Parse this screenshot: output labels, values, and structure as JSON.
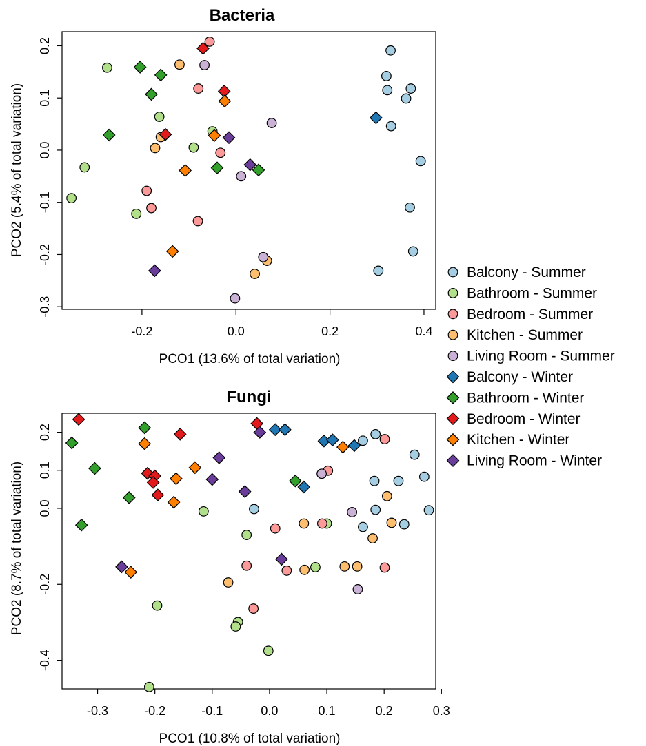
{
  "legend": [
    {
      "label": "Balcony - Summer",
      "shape": "circle",
      "color": "#A6CEE3"
    },
    {
      "label": "Bathroom - Summer",
      "shape": "circle",
      "color": "#B2DF8A"
    },
    {
      "label": "Bedroom - Summer",
      "shape": "circle",
      "color": "#FB9A99"
    },
    {
      "label": "Kitchen - Summer",
      "shape": "circle",
      "color": "#FDBF6F"
    },
    {
      "label": "Living Room - Summer",
      "shape": "circle",
      "color": "#CAB2D6"
    },
    {
      "label": "Balcony - Winter",
      "shape": "diamond",
      "color": "#1F78B4"
    },
    {
      "label": "Bathroom - Winter",
      "shape": "diamond",
      "color": "#33A02C"
    },
    {
      "label": "Bedroom - Winter",
      "shape": "diamond",
      "color": "#E31A1C"
    },
    {
      "label": "Kitchen - Winter",
      "shape": "diamond",
      "color": "#FF7F00"
    },
    {
      "label": "Living Room - Winter",
      "shape": "diamond",
      "color": "#6A3D9A"
    }
  ],
  "chart_data": [
    {
      "type": "scatter",
      "title": "Bacteria",
      "xlabel": "PCO1 (13.6% of total variation)",
      "ylabel": "PCO2 (5.4% of total variation)",
      "xlim": [
        -0.37,
        0.425
      ],
      "ylim": [
        -0.305,
        0.227
      ],
      "xticks": [
        -0.2,
        0.0,
        0.2,
        0.4
      ],
      "xtick_labels": [
        "-0.2",
        "0.0",
        "0.2",
        "0.4"
      ],
      "yticks": [
        -0.3,
        -0.2,
        -0.1,
        0.0,
        0.1,
        0.2
      ],
      "ytick_labels": [
        "-0.3",
        "-0.2",
        "-0.1",
        "0.0",
        "0.1",
        "0.2"
      ],
      "grid": false,
      "series": [
        {
          "name": "Balcony - Summer",
          "points": [
            [
              0.329,
              0.191
            ],
            [
              0.32,
              0.142
            ],
            [
              0.322,
              0.115
            ],
            [
              0.372,
              0.118
            ],
            [
              0.362,
              0.099
            ],
            [
              0.33,
              0.046
            ],
            [
              0.393,
              -0.021
            ],
            [
              0.37,
              -0.11
            ],
            [
              0.377,
              -0.194
            ],
            [
              0.303,
              -0.231
            ]
          ]
        },
        {
          "name": "Bathroom - Summer",
          "points": [
            [
              -0.274,
              0.158
            ],
            [
              -0.163,
              0.064
            ],
            [
              -0.05,
              0.036
            ],
            [
              -0.09,
              0.005
            ],
            [
              -0.322,
              -0.033
            ],
            [
              -0.35,
              -0.092
            ],
            [
              -0.212,
              -0.122
            ]
          ]
        },
        {
          "name": "Bedroom - Summer",
          "points": [
            [
              -0.056,
              0.208
            ],
            [
              -0.08,
              0.118
            ],
            [
              -0.033,
              -0.005
            ],
            [
              -0.19,
              -0.078
            ],
            [
              -0.18,
              -0.111
            ],
            [
              -0.081,
              -0.136
            ]
          ]
        },
        {
          "name": "Kitchen - Summer",
          "points": [
            [
              -0.12,
              0.164
            ],
            [
              -0.16,
              0.025
            ],
            [
              -0.172,
              0.004
            ],
            [
              0.066,
              -0.212
            ],
            [
              0.04,
              -0.237
            ]
          ]
        },
        {
          "name": "Living Room - Summer",
          "points": [
            [
              -0.067,
              0.163
            ],
            [
              0.076,
              0.052
            ],
            [
              0.011,
              -0.05
            ],
            [
              0.058,
              -0.205
            ],
            [
              -0.002,
              -0.284
            ]
          ]
        },
        {
          "name": "Balcony - Winter",
          "points": [
            [
              0.298,
              0.062
            ]
          ]
        },
        {
          "name": "Bathroom - Winter",
          "points": [
            [
              -0.204,
              0.159
            ],
            [
              -0.16,
              0.144
            ],
            [
              -0.18,
              0.107
            ],
            [
              -0.27,
              0.029
            ],
            [
              -0.04,
              -0.034
            ],
            [
              0.048,
              -0.038
            ]
          ]
        },
        {
          "name": "Bedroom - Winter",
          "points": [
            [
              -0.07,
              0.195
            ],
            [
              -0.025,
              0.113
            ],
            [
              -0.15,
              0.03
            ]
          ]
        },
        {
          "name": "Kitchen - Winter",
          "points": [
            [
              -0.024,
              0.094
            ],
            [
              -0.046,
              0.028
            ],
            [
              -0.108,
              -0.039
            ],
            [
              -0.135,
              -0.194
            ]
          ]
        },
        {
          "name": "Living Room - Winter",
          "points": [
            [
              -0.015,
              0.024
            ],
            [
              0.03,
              -0.028
            ],
            [
              -0.173,
              -0.231
            ]
          ]
        }
      ]
    },
    {
      "type": "scatter",
      "title": "Fungi",
      "xlabel": "PCO1 (10.8% of total variation)",
      "ylabel": "PCO2 (8.7% of total variation)",
      "xlim": [
        -0.362,
        0.29
      ],
      "ylim": [
        -0.475,
        0.25
      ],
      "xticks": [
        -0.3,
        -0.2,
        -0.1,
        0.0,
        0.1,
        0.2,
        0.3
      ],
      "xtick_labels": [
        "-0.3",
        "-0.2",
        "-0.1",
        "0.0",
        "0.1",
        "0.2",
        "0.3"
      ],
      "yticks": [
        -0.4,
        -0.2,
        0.0,
        0.1,
        0.2
      ],
      "ytick_labels": [
        "-0.4",
        "-0.2",
        "0.0",
        "0.1",
        "0.2"
      ],
      "grid": false,
      "series": [
        {
          "name": "Balcony - Summer",
          "points": [
            [
              0.185,
              0.195
            ],
            [
              0.163,
              0.178
            ],
            [
              0.253,
              0.141
            ],
            [
              0.27,
              0.083
            ],
            [
              0.183,
              0.072
            ],
            [
              0.225,
              0.072
            ],
            [
              0.278,
              -0.005
            ],
            [
              0.185,
              -0.004
            ],
            [
              -0.027,
              -0.002
            ],
            [
              0.163,
              -0.049
            ],
            [
              0.235,
              -0.042
            ]
          ]
        },
        {
          "name": "Bathroom - Summer",
          "points": [
            [
              -0.115,
              -0.008
            ],
            [
              -0.04,
              -0.07
            ],
            [
              0.1,
              -0.04
            ],
            [
              0.08,
              -0.155
            ],
            [
              -0.196,
              -0.256
            ],
            [
              -0.055,
              -0.299
            ],
            [
              -0.059,
              -0.311
            ],
            [
              -0.002,
              -0.375
            ],
            [
              -0.21,
              -0.47
            ]
          ]
        },
        {
          "name": "Bedroom - Summer",
          "points": [
            [
              0.201,
              0.182
            ],
            [
              0.102,
              0.099
            ],
            [
              0.092,
              -0.04
            ],
            [
              0.01,
              -0.053
            ],
            [
              -0.04,
              -0.151
            ],
            [
              0.03,
              -0.164
            ],
            [
              0.201,
              -0.156
            ],
            [
              -0.028,
              -0.264
            ]
          ]
        },
        {
          "name": "Kitchen - Summer",
          "points": [
            [
              0.205,
              0.032
            ],
            [
              0.06,
              -0.04
            ],
            [
              0.213,
              -0.038
            ],
            [
              0.18,
              -0.079
            ],
            [
              0.131,
              -0.153
            ],
            [
              0.153,
              -0.153
            ],
            [
              0.061,
              -0.162
            ],
            [
              -0.072,
              -0.195
            ]
          ]
        },
        {
          "name": "Living Room - Summer",
          "points": [
            [
              0.091,
              0.091
            ],
            [
              0.144,
              -0.01
            ],
            [
              0.154,
              -0.213
            ]
          ]
        },
        {
          "name": "Balcony - Winter",
          "points": [
            [
              0.01,
              0.207
            ],
            [
              0.027,
              0.207
            ],
            [
              0.095,
              0.177
            ],
            [
              0.11,
              0.18
            ],
            [
              0.148,
              0.165
            ],
            [
              0.06,
              0.056
            ]
          ]
        },
        {
          "name": "Bathroom - Winter",
          "points": [
            [
              -0.218,
              0.212
            ],
            [
              -0.345,
              0.172
            ],
            [
              -0.305,
              0.105
            ],
            [
              -0.245,
              0.028
            ],
            [
              0.045,
              0.072
            ],
            [
              -0.328,
              -0.044
            ]
          ]
        },
        {
          "name": "Bedroom - Winter",
          "points": [
            [
              -0.333,
              0.234
            ],
            [
              -0.022,
              0.223
            ],
            [
              -0.156,
              0.195
            ],
            [
              -0.213,
              0.092
            ],
            [
              -0.2,
              0.085
            ],
            [
              -0.203,
              0.068
            ],
            [
              -0.195,
              0.035
            ]
          ]
        },
        {
          "name": "Kitchen - Winter",
          "points": [
            [
              -0.218,
              0.17
            ],
            [
              0.128,
              0.161
            ],
            [
              -0.13,
              0.107
            ],
            [
              -0.163,
              0.078
            ],
            [
              -0.167,
              0.016
            ],
            [
              -0.242,
              -0.168
            ]
          ]
        },
        {
          "name": "Living Room - Winter",
          "points": [
            [
              -0.017,
              0.2
            ],
            [
              -0.088,
              0.133
            ],
            [
              -0.1,
              0.076
            ],
            [
              -0.043,
              0.044
            ],
            [
              0.021,
              -0.134
            ],
            [
              -0.258,
              -0.154
            ]
          ]
        }
      ]
    }
  ]
}
